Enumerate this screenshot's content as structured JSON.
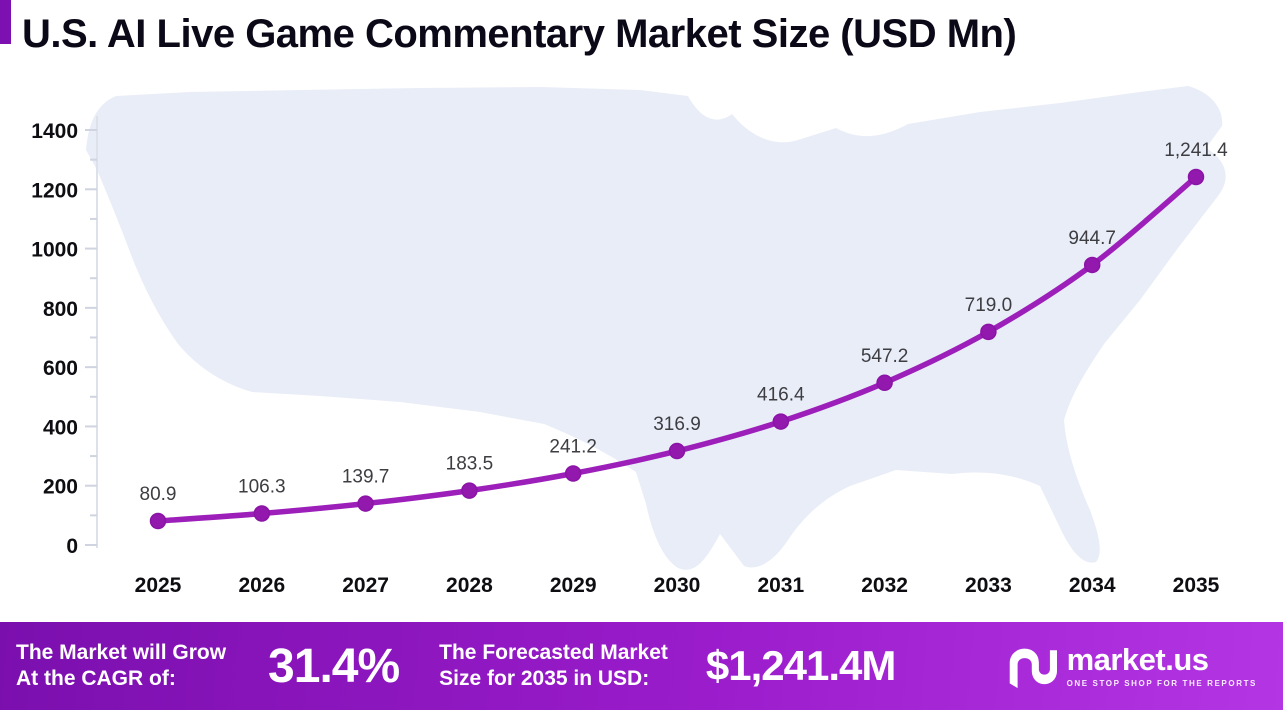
{
  "title": "U.S. AI Live Game Commentary Market Size (USD Mn)",
  "chart_data": {
    "type": "line",
    "title": "U.S. AI Live Game Commentary Market Size (USD Mn)",
    "categories": [
      "2025",
      "2026",
      "2027",
      "2028",
      "2029",
      "2030",
      "2031",
      "2032",
      "2033",
      "2034",
      "2035"
    ],
    "series": [
      {
        "name": "Market Size (USD Mn)",
        "values": [
          80.9,
          106.3,
          139.7,
          183.5,
          241.2,
          316.9,
          416.4,
          547.2,
          719.0,
          944.7,
          1241.4
        ]
      }
    ],
    "value_labels": [
      "80.9",
      "106.3",
      "139.7",
      "183.5",
      "241.2",
      "316.9",
      "416.4",
      "547.2",
      "719.0",
      "944.7",
      "1,241.4"
    ],
    "yticks": [
      0,
      200,
      400,
      600,
      800,
      1000,
      1200,
      1400
    ],
    "ylim": [
      0,
      1400
    ],
    "xlabel": "",
    "ylabel": "",
    "grid": false,
    "legend": "none",
    "line_color": "#9c1fba",
    "marker_color": "#9318ad",
    "marker_stroke": "#8a14a6",
    "label_color": "#3d3d42"
  },
  "banner": {
    "cagr_label_line1": "The Market will Grow",
    "cagr_label_line2": "At the CAGR of:",
    "cagr_value": "31.4%",
    "forecast_label_line1": "The Forecasted Market",
    "forecast_label_line2": "Size for 2035 in USD:",
    "forecast_value": "$1,241.4M",
    "logo_text": "market.us",
    "logo_tagline": "ONE STOP SHOP FOR THE REPORTS",
    "gradient_left": "#7b0fae",
    "gradient_mid": "#9a1ccb",
    "gradient_right": "#b335e3"
  }
}
